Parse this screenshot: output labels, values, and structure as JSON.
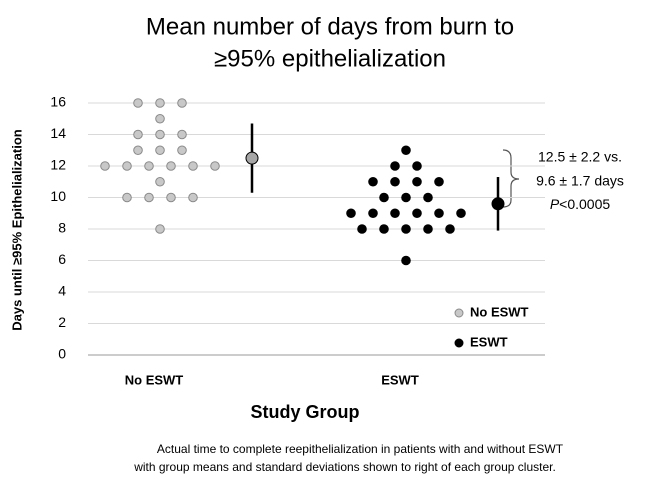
{
  "chart_data": {
    "type": "scatter",
    "title": [
      "Mean number of days from burn to",
      "≥95%  epithelialization"
    ],
    "ylabel": "Days until ≥95% Epithelialization",
    "xlabel": "Study Group",
    "categories": [
      "No ESWT",
      "ESWT"
    ],
    "series": [
      {
        "name": "No ESWT",
        "color": "#c8c8c8",
        "mean_color": "#a6a6a6",
        "values": [
          16,
          16,
          16,
          15,
          14,
          14,
          14,
          13,
          13,
          13,
          12,
          12,
          12,
          12,
          12,
          12,
          11,
          10,
          10,
          10,
          10,
          8
        ],
        "mean": 12.5,
        "sd": 2.2
      },
      {
        "name": "ESWT",
        "color": "#000000",
        "mean_color": "#000000",
        "values": [
          13,
          12,
          12,
          11,
          11,
          11,
          11,
          10,
          10,
          10,
          9,
          9,
          9,
          9,
          9,
          9,
          8,
          8,
          8,
          8,
          8,
          6
        ],
        "mean": 9.6,
        "sd": 1.7
      }
    ],
    "ylim": [
      0,
      16
    ],
    "yticks": [
      0,
      2,
      4,
      6,
      8,
      10,
      12,
      14,
      16
    ],
    "grid": true,
    "legend": "lower-right",
    "annotation": {
      "lines": [
        "12.5 ± 2.2 vs.",
        "9.6 ± 1.7 days"
      ],
      "p_symbol": "P",
      "p_text": "<0.0005"
    },
    "caption": [
      "Actual time to complete reepithelialization in patients with and without ESWT",
      "with group means and standard deviations shown to right of each group cluster."
    ]
  }
}
